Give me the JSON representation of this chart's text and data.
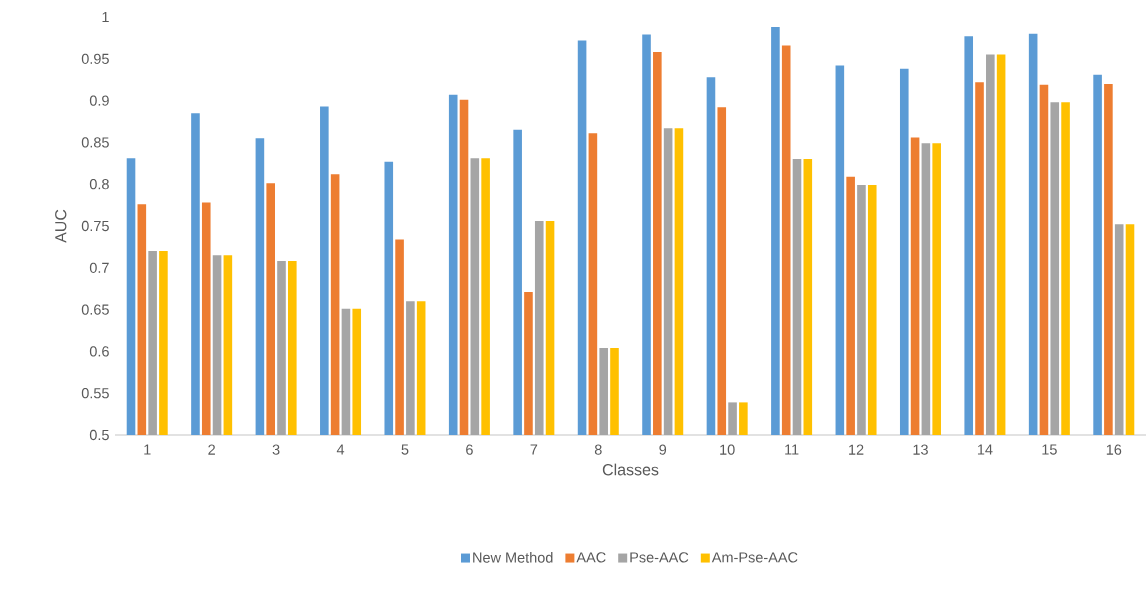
{
  "chart_data": {
    "type": "bar",
    "xlabel": "Classes",
    "ylabel": "AUC",
    "categories": [
      "1",
      "2",
      "3",
      "4",
      "5",
      "6",
      "7",
      "8",
      "9",
      "10",
      "11",
      "12",
      "13",
      "14",
      "15",
      "16"
    ],
    "ylim": [
      0.5,
      1
    ],
    "yticks": [
      {
        "value": 0.5,
        "label": "0.5"
      },
      0.55,
      {
        "value": 0.6,
        "label": "0.6"
      },
      0.65,
      {
        "value": 0.7,
        "label": "0.7"
      },
      0.75,
      {
        "value": 0.8,
        "label": "0.8"
      },
      0.85,
      {
        "value": 0.9,
        "label": "0.9"
      },
      0.95,
      {
        "value": 1,
        "label": "1"
      }
    ],
    "grid": false,
    "legend": "bottom",
    "series": [
      {
        "name": "New Method",
        "color": "#5b9bd5",
        "values": [
          0.831,
          0.885,
          0.855,
          0.893,
          0.827,
          0.907,
          0.865,
          0.972,
          0.979,
          0.928,
          0.988,
          0.942,
          0.938,
          0.977,
          0.98,
          0.931
        ]
      },
      {
        "name": "AAC",
        "color": "#ed7d31",
        "values": [
          0.776,
          0.778,
          0.801,
          0.812,
          0.734,
          0.901,
          0.671,
          0.861,
          0.958,
          0.892,
          0.966,
          0.809,
          0.856,
          0.922,
          0.919,
          0.92
        ]
      },
      {
        "name": "Pse-AAC",
        "color": "#a5a5a5",
        "values": [
          0.72,
          0.715,
          0.708,
          0.651,
          0.66,
          0.831,
          0.756,
          0.604,
          0.867,
          0.539,
          0.83,
          0.799,
          0.849,
          0.955,
          0.898,
          0.752
        ]
      },
      {
        "name": "Am-Pse-AAC",
        "color": "#ffc000",
        "values": [
          0.72,
          0.715,
          0.708,
          0.651,
          0.66,
          0.831,
          0.756,
          0.604,
          0.867,
          0.539,
          0.83,
          0.799,
          0.849,
          0.955,
          0.898,
          0.752
        ]
      }
    ]
  }
}
